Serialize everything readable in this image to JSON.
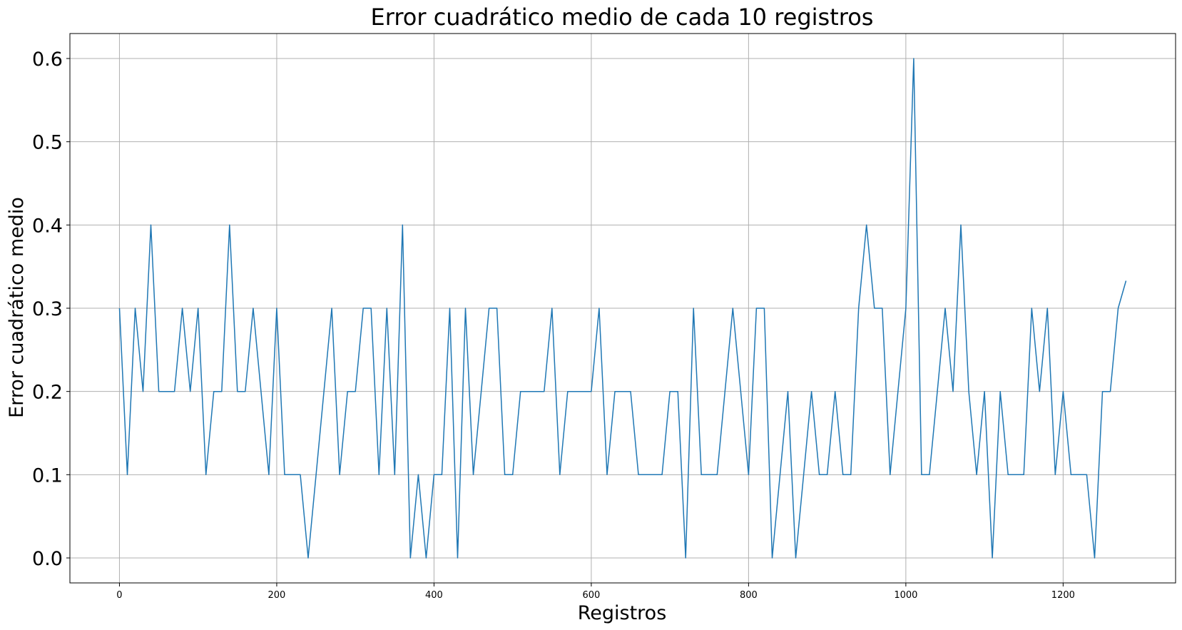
{
  "chart_data": {
    "type": "line",
    "title": "Error cuadrático medio de cada 10 registros",
    "xlabel": "Registros",
    "ylabel": "Error cuadrático medio",
    "xlim": [
      -63,
      1343
    ],
    "ylim": [
      -0.03,
      0.63
    ],
    "grid": true,
    "x_ticks": [
      0,
      200,
      400,
      600,
      800,
      1000,
      1200
    ],
    "x_tick_labels": [
      "0",
      "200",
      "400",
      "600",
      "800",
      "1000",
      "1200"
    ],
    "y_ticks": [
      0.0,
      0.1,
      0.2,
      0.3,
      0.4,
      0.5,
      0.6
    ],
    "y_tick_labels": [
      "0.0",
      "0.1",
      "0.2",
      "0.3",
      "0.4",
      "0.5",
      "0.6"
    ],
    "series": [
      {
        "color": "#1f77b4",
        "x_start": 0,
        "x_step": 10,
        "values": [
          0.3,
          0.1,
          0.3,
          0.2,
          0.4,
          0.2,
          0.2,
          0.2,
          0.3,
          0.2,
          0.3,
          0.1,
          0.2,
          0.2,
          0.4,
          0.2,
          0.2,
          0.3,
          0.2,
          0.1,
          0.3,
          0.1,
          0.1,
          0.1,
          0.0,
          0.1,
          0.2,
          0.3,
          0.1,
          0.2,
          0.2,
          0.3,
          0.3,
          0.1,
          0.3,
          0.1,
          0.4,
          0.0,
          0.1,
          0.0,
          0.1,
          0.1,
          0.3,
          0.0,
          0.3,
          0.1,
          0.2,
          0.3,
          0.3,
          0.1,
          0.1,
          0.2,
          0.2,
          0.2,
          0.2,
          0.3,
          0.1,
          0.2,
          0.2,
          0.2,
          0.2,
          0.3,
          0.1,
          0.2,
          0.2,
          0.2,
          0.1,
          0.1,
          0.1,
          0.1,
          0.2,
          0.2,
          0.0,
          0.3,
          0.1,
          0.1,
          0.1,
          0.2,
          0.3,
          0.2,
          0.1,
          0.3,
          0.3,
          0.0,
          0.1,
          0.2,
          0.0,
          0.1,
          0.2,
          0.1,
          0.1,
          0.2,
          0.1,
          0.1,
          0.3,
          0.4,
          0.3,
          0.3,
          0.1,
          0.2,
          0.3,
          0.6,
          0.1,
          0.1,
          0.2,
          0.3,
          0.2,
          0.4,
          0.2,
          0.1,
          0.2,
          0.0,
          0.2,
          0.1,
          0.1,
          0.1,
          0.3,
          0.2,
          0.3,
          0.1,
          0.2,
          0.1,
          0.1,
          0.1,
          0.0,
          0.2,
          0.2,
          0.3,
          0.333
        ]
      }
    ]
  }
}
